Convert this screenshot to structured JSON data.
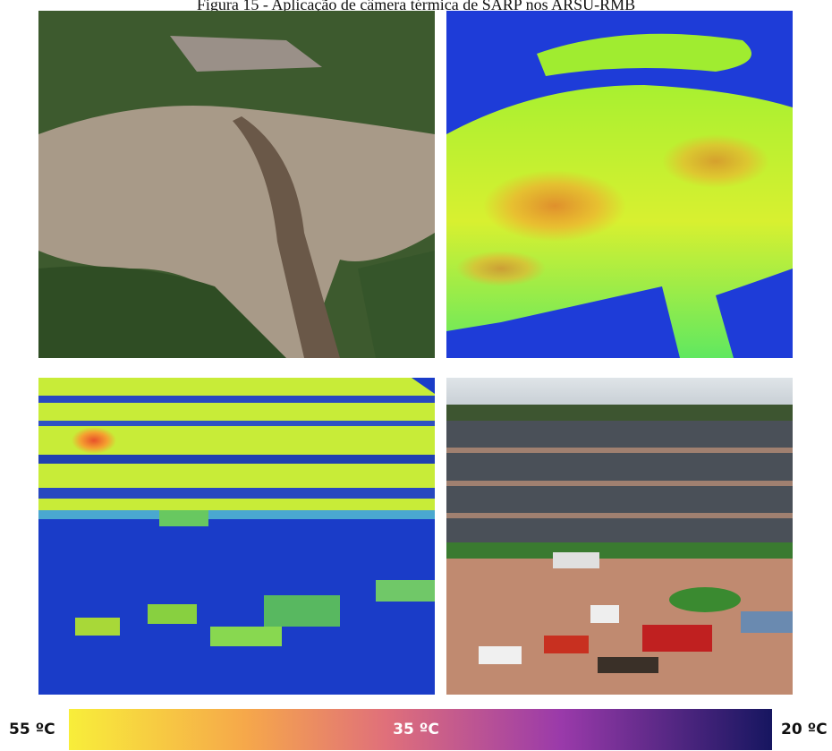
{
  "figure": {
    "title": "Figura 15 - Aplicação de câmera térmica de SARP nos ARSU-RMB",
    "colorbar": {
      "max_label": "55 ºC",
      "mid_label": "35 ºC",
      "min_label": "20 ºC"
    }
  }
}
